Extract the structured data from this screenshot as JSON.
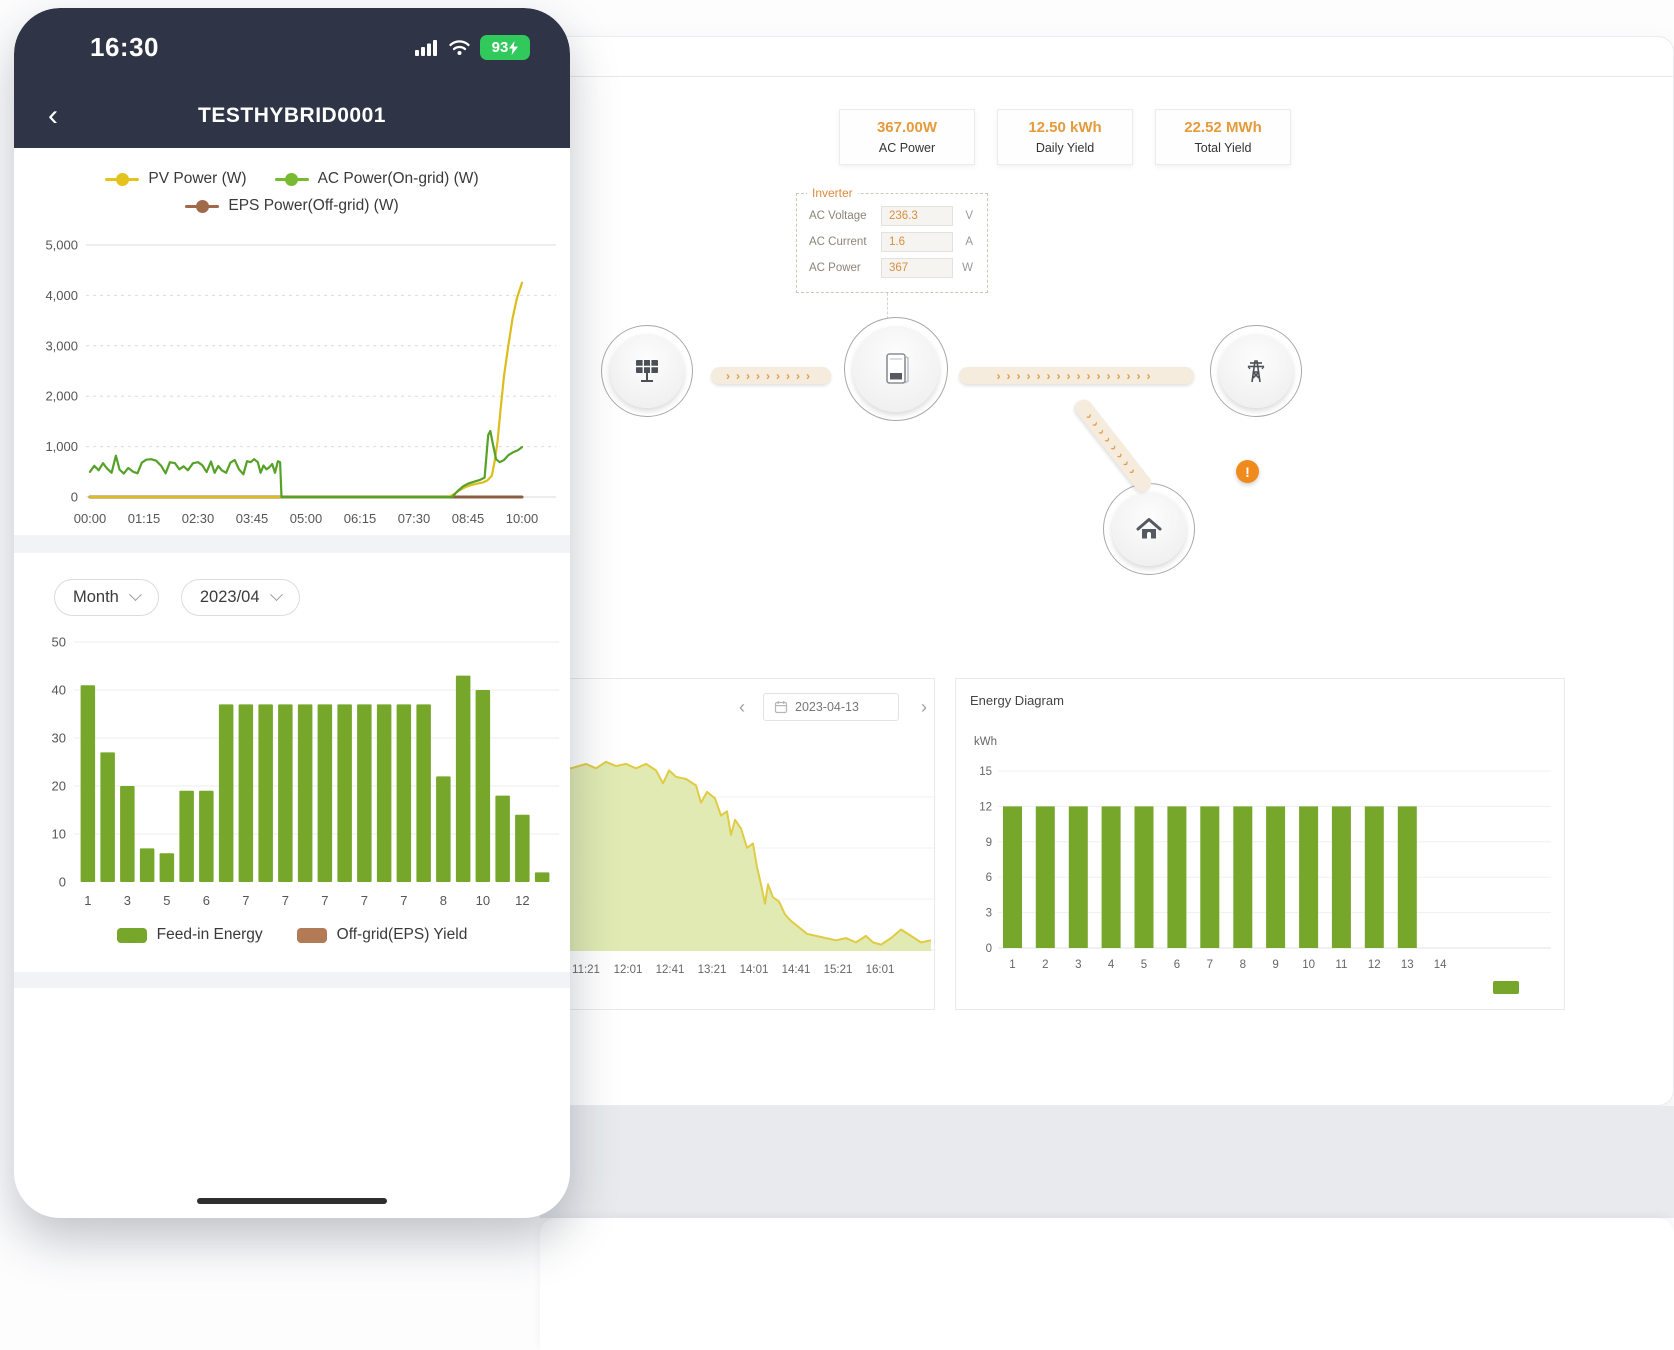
{
  "phone": {
    "status_bar": {
      "time": "16:30",
      "battery_percent": "93"
    },
    "nav": {
      "back_glyph": "‹",
      "title": "TESTHYBRID0001"
    },
    "controls": {
      "period": "Month",
      "month": "2023/04"
    }
  },
  "desktop": {
    "stats": [
      {
        "value": "367.00W",
        "label": "AC Power"
      },
      {
        "value": "12.50 kWh",
        "label": "Daily Yield"
      },
      {
        "value": "22.52 MWh",
        "label": "Total Yield"
      }
    ],
    "inverter_panel": {
      "title": "Inverter",
      "rows": [
        {
          "label": "AC Voltage",
          "value": "236.3",
          "unit": "V"
        },
        {
          "label": "AC Current",
          "value": "1.6",
          "unit": "A"
        },
        {
          "label": "AC Power",
          "value": "367",
          "unit": "W"
        }
      ]
    },
    "flow_alert_glyph": "!",
    "day_panel": {
      "prev_glyph": "‹",
      "next_glyph": "›",
      "date": "2023-04-13"
    },
    "energy_panel": {
      "title": "Energy Diagram"
    }
  },
  "icons": {
    "arrow_chevron": "›"
  },
  "colors": {
    "navy": "#2f3547",
    "green": "#76a62a",
    "yellow": "#e5c31d",
    "brown": "#a0694a",
    "orange_value": "#e59a3c",
    "battery_green": "#31c85c",
    "alert_orange": "#f08a1d"
  },
  "chart_data": [
    {
      "id": "pv-power-line",
      "type": "line",
      "ylim": [
        0,
        5000
      ],
      "yticks": [
        "0",
        "1,000",
        "2,000",
        "3,000",
        "4,000",
        "5,000"
      ],
      "xticks": [
        "00:00",
        "01:15",
        "02:30",
        "03:45",
        "05:00",
        "06:15",
        "07:30",
        "08:45",
        "10:00"
      ],
      "grid": true,
      "legend_position": "top",
      "legend": [
        {
          "label": "PV Power (W)",
          "color": "#e5c31d"
        },
        {
          "label": "AC Power(On-grid) (W)",
          "color": "#79bb30"
        },
        {
          "label": "EPS Power(Off-grid) (W)",
          "color": "#a0694a"
        }
      ],
      "series": [
        {
          "name": "EPS Power(Off-grid) (W)",
          "color": "#8a5f41",
          "width": 3,
          "points": [
            [
              0,
              0
            ],
            [
              600,
              0
            ]
          ]
        },
        {
          "name": "PV Power (W)",
          "color": "#ddbd1c",
          "width": 2.2,
          "points": [
            [
              0,
              0
            ],
            [
              498,
              0
            ],
            [
              506,
              60
            ],
            [
              514,
              140
            ],
            [
              522,
              200
            ],
            [
              530,
              240
            ],
            [
              538,
              265
            ],
            [
              546,
              290
            ],
            [
              552,
              330
            ],
            [
              558,
              420
            ],
            [
              562,
              700
            ],
            [
              566,
              1100
            ],
            [
              570,
              1700
            ],
            [
              575,
              2400
            ],
            [
              581,
              3000
            ],
            [
              587,
              3550
            ],
            [
              593,
              3950
            ],
            [
              600,
              4250
            ]
          ]
        },
        {
          "name": "AC Power(On-grid) (W)",
          "color": "#56a128",
          "width": 2.2,
          "points": [
            [
              0,
              500
            ],
            [
              6,
              620
            ],
            [
              12,
              530
            ],
            [
              18,
              670
            ],
            [
              24,
              560
            ],
            [
              30,
              480
            ],
            [
              36,
              820
            ],
            [
              41,
              545
            ],
            [
              47,
              465
            ],
            [
              53,
              575
            ],
            [
              60,
              500
            ],
            [
              66,
              470
            ],
            [
              72,
              680
            ],
            [
              78,
              740
            ],
            [
              85,
              750
            ],
            [
              92,
              720
            ],
            [
              99,
              615
            ],
            [
              105,
              470
            ],
            [
              111,
              690
            ],
            [
              118,
              670
            ],
            [
              124,
              550
            ],
            [
              130,
              610
            ],
            [
              136,
              530
            ],
            [
              143,
              670
            ],
            [
              150,
              690
            ],
            [
              156,
              630
            ],
            [
              162,
              495
            ],
            [
              168,
              705
            ],
            [
              173,
              480
            ],
            [
              178,
              615
            ],
            [
              183,
              530
            ],
            [
              189,
              480
            ],
            [
              195,
              680
            ],
            [
              201,
              735
            ],
            [
              207,
              550
            ],
            [
              213,
              450
            ],
            [
              218,
              710
            ],
            [
              223,
              690
            ],
            [
              228,
              750
            ],
            [
              233,
              690
            ],
            [
              237,
              480
            ],
            [
              241,
              625
            ],
            [
              245,
              550
            ],
            [
              249,
              590
            ],
            [
              253,
              655
            ],
            [
              257,
              480
            ],
            [
              261,
              710
            ],
            [
              264,
              690
            ],
            [
              266,
              0
            ],
            [
              503,
              0
            ],
            [
              510,
              110
            ],
            [
              518,
              210
            ],
            [
              526,
              270
            ],
            [
              534,
              305
            ],
            [
              541,
              335
            ],
            [
              548,
              385
            ],
            [
              553,
              1230
            ],
            [
              556,
              1310
            ],
            [
              560,
              1020
            ],
            [
              564,
              750
            ],
            [
              569,
              690
            ],
            [
              575,
              735
            ],
            [
              581,
              830
            ],
            [
              588,
              890
            ],
            [
              594,
              925
            ],
            [
              600,
              990
            ]
          ]
        }
      ]
    },
    {
      "id": "monthly-feed-in-bars",
      "type": "bar",
      "ylim": [
        0,
        50
      ],
      "yticks": [
        0,
        10,
        20,
        30,
        40,
        50
      ],
      "values": [
        41,
        27,
        20,
        7,
        6,
        19,
        19,
        37,
        37,
        37,
        37,
        37,
        37,
        37,
        37,
        37,
        37,
        37,
        22,
        43,
        40,
        18,
        14,
        2
      ],
      "xtick_labels": [
        "1",
        "3",
        "5",
        "6",
        "7",
        "7",
        "7",
        "7",
        "7",
        "8",
        "10",
        "12"
      ],
      "bar_color": "#76a62a",
      "legend": [
        {
          "label": "Feed-in Energy",
          "color": "#76a62a"
        },
        {
          "label": "Off-grid(EPS) Yield",
          "color": "#b37b55"
        }
      ]
    },
    {
      "id": "daily-production-area",
      "type": "area",
      "xticks": [
        "11:21",
        "12:01",
        "12:41",
        "13:21",
        "14:01",
        "14:41",
        "15:21",
        "16:01"
      ],
      "stroke": "#e0cb45",
      "fill": "#dde8ab",
      "points_frac": [
        [
          60,
          0.83
        ],
        [
          80,
          0.85
        ],
        [
          100,
          0.84
        ],
        [
          120,
          0.86
        ],
        [
          140,
          0.85
        ],
        [
          155,
          0.87
        ],
        [
          165,
          0.85
        ],
        [
          175,
          0.88
        ],
        [
          185,
          0.86
        ],
        [
          195,
          0.87
        ],
        [
          205,
          0.85
        ],
        [
          215,
          0.87
        ],
        [
          225,
          0.84
        ],
        [
          232,
          0.78
        ],
        [
          238,
          0.84
        ],
        [
          245,
          0.81
        ],
        [
          255,
          0.8
        ],
        [
          265,
          0.77
        ],
        [
          270,
          0.69
        ],
        [
          276,
          0.74
        ],
        [
          284,
          0.71
        ],
        [
          290,
          0.63
        ],
        [
          296,
          0.65
        ],
        [
          300,
          0.54
        ],
        [
          304,
          0.61
        ],
        [
          310,
          0.57
        ],
        [
          316,
          0.48
        ],
        [
          322,
          0.5
        ],
        [
          326,
          0.39
        ],
        [
          330,
          0.31
        ],
        [
          334,
          0.22
        ],
        [
          337,
          0.31
        ],
        [
          342,
          0.25
        ],
        [
          348,
          0.23
        ],
        [
          354,
          0.17
        ],
        [
          360,
          0.14
        ],
        [
          368,
          0.11
        ],
        [
          376,
          0.08
        ],
        [
          385,
          0.07
        ],
        [
          395,
          0.06
        ],
        [
          405,
          0.05
        ],
        [
          415,
          0.06
        ],
        [
          425,
          0.04
        ],
        [
          435,
          0.07
        ],
        [
          442,
          0.04
        ],
        [
          450,
          0.03
        ],
        [
          460,
          0.06
        ],
        [
          470,
          0.1
        ],
        [
          480,
          0.07
        ],
        [
          490,
          0.04
        ],
        [
          500,
          0.05
        ]
      ]
    },
    {
      "id": "energy-diagram",
      "type": "bar",
      "title": "Energy Diagram",
      "ylabel": "kWh",
      "ylim": [
        0,
        15
      ],
      "yticks": [
        0,
        3,
        6,
        9,
        12,
        15
      ],
      "categories": [
        "1",
        "2",
        "3",
        "4",
        "5",
        "6",
        "7",
        "8",
        "9",
        "10",
        "11",
        "12",
        "13",
        "14"
      ],
      "values": [
        12,
        12,
        12,
        12,
        12,
        12,
        12,
        12,
        12,
        12,
        12,
        12,
        12,
        null
      ],
      "bar_color": "#76a62a"
    }
  ]
}
